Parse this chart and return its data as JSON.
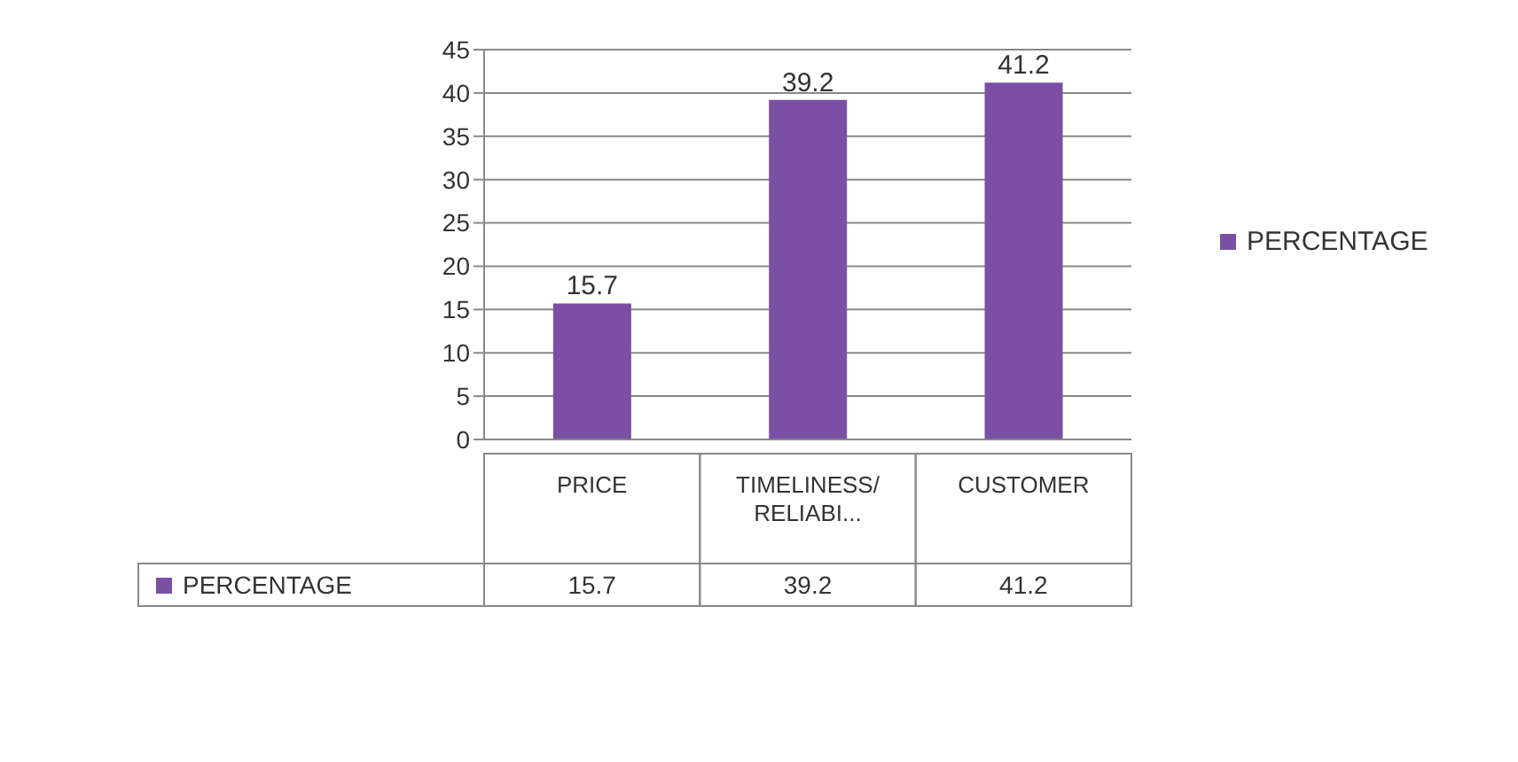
{
  "chart_data": {
    "type": "bar",
    "categories": [
      "PRICE",
      "TIMELINESS/ RELIABI...",
      "CUSTOMER"
    ],
    "series": [
      {
        "name": "PERCENTAGE",
        "color": "#7b4fa3",
        "values": [
          15.7,
          39.2,
          41.2
        ],
        "value_labels": [
          "15.7",
          "39.2",
          "41.2"
        ]
      }
    ],
    "ylim": [
      0,
      45
    ],
    "yticks": [
      0,
      5,
      10,
      15,
      20,
      25,
      30,
      35,
      40,
      45
    ],
    "annotations": [
      "15.7",
      "39.2",
      "41.2"
    ],
    "grid": "y",
    "legend": "right",
    "data_labels": true
  }
}
